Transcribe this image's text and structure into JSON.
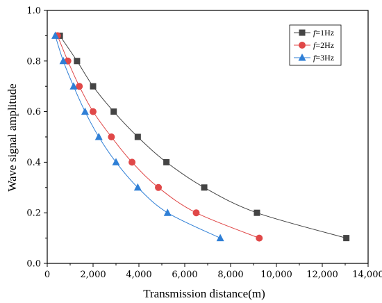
{
  "chart_data": {
    "type": "line",
    "xlabel": "Transmission distance(m)",
    "ylabel": "Wave signal amplitude",
    "xlim": [
      0,
      14000
    ],
    "ylim": [
      0.0,
      1.0
    ],
    "xticks": [
      0,
      2000,
      4000,
      6000,
      8000,
      10000,
      12000,
      14000
    ],
    "xtick_labels": [
      "0",
      "2,000",
      "4,000",
      "6,000",
      "8,000",
      "10,000",
      "12,000",
      "14,000"
    ],
    "yticks": [
      0.0,
      0.2,
      0.4,
      0.6,
      0.8,
      1.0
    ],
    "ytick_labels": [
      "0.0",
      "0.2",
      "0.4",
      "0.6",
      "0.8",
      "1.0"
    ],
    "grid": false,
    "legend_position": "top-right",
    "series": [
      {
        "name": "f=1Hz",
        "legend_italic": "f",
        "legend_rest": "=1Hz",
        "marker": "square",
        "color": "#444444",
        "x": [
          550,
          1300,
          2000,
          2900,
          3950,
          5200,
          6850,
          9150,
          13050
        ],
        "y": [
          0.9,
          0.8,
          0.7,
          0.6,
          0.5,
          0.4,
          0.3,
          0.2,
          0.1
        ]
      },
      {
        "name": "f=2Hz",
        "legend_italic": "f",
        "legend_rest": "=2Hz",
        "marker": "circle",
        "color": "#e04848",
        "x": [
          450,
          900,
          1400,
          2000,
          2800,
          3700,
          4850,
          6500,
          9250
        ],
        "y": [
          0.9,
          0.8,
          0.7,
          0.6,
          0.5,
          0.4,
          0.3,
          0.2,
          0.1
        ]
      },
      {
        "name": "f=3Hz",
        "legend_italic": "f",
        "legend_rest": "=3Hz",
        "marker": "triangle",
        "color": "#2f7fd6",
        "x": [
          350,
          700,
          1150,
          1650,
          2250,
          3000,
          3950,
          5250,
          7550
        ],
        "y": [
          0.9,
          0.8,
          0.7,
          0.6,
          0.5,
          0.4,
          0.3,
          0.2,
          0.1
        ]
      }
    ]
  }
}
